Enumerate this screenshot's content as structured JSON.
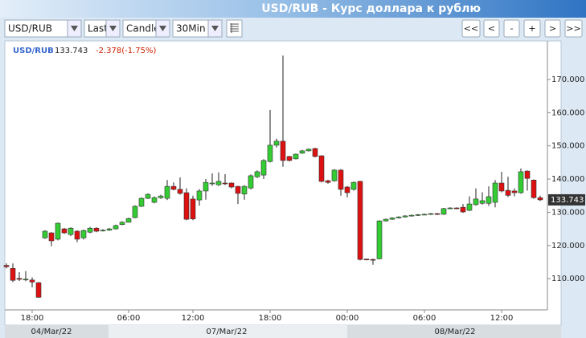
{
  "header": {
    "title": "USD/RUB - Курс доллара к рублю"
  },
  "toolbar": {
    "symbol": "USD/RUB",
    "price_type": "Last",
    "chart_type": "Candle",
    "interval": "30Min",
    "nav_buttons": [
      "<<",
      "<",
      "-",
      "+",
      ">",
      ">>"
    ]
  },
  "chart_data": {
    "type": "candlestick",
    "legend": {
      "symbol": "USD/RUB",
      "last": 133.743,
      "change": "-2.378(-1.75%)"
    },
    "up_color": "#33cc33",
    "down_color": "#dd1111",
    "date_labels": [
      "04/Mar/22",
      "07/Mar/22",
      "08/Mar/22"
    ],
    "categories": [
      null,
      null,
      null,
      null,
      "18:00",
      null,
      null,
      null,
      null,
      null,
      null,
      null,
      null,
      null,
      null,
      null,
      null,
      null,
      null,
      "06:00",
      null,
      null,
      null,
      null,
      null,
      null,
      null,
      null,
      null,
      "12:00",
      null,
      null,
      null,
      null,
      null,
      null,
      null,
      null,
      null,
      null,
      null,
      "18:00",
      null,
      null,
      null,
      null,
      null,
      null,
      null,
      null,
      null,
      null,
      null,
      "00:00",
      null,
      null,
      null,
      null,
      null,
      null,
      null,
      null,
      null,
      null,
      null,
      "06:00",
      null,
      null,
      null,
      null,
      null,
      null,
      null,
      null,
      null,
      null,
      null,
      "12:00",
      null,
      null,
      null,
      null,
      null,
      null
    ],
    "open": [
      114.0,
      113.1,
      110.1,
      109.7,
      109.6,
      108.8,
      122.3,
      123.8,
      121.9,
      125.0,
      123.3,
      124.3,
      122.3,
      124.0,
      125.2,
      124.5,
      124.6,
      125.0,
      126.3,
      127.0,
      128.4,
      131.8,
      134.2,
      133.0,
      134.4,
      134.2,
      137.8,
      136.9,
      135.9,
      134.0,
      133.7,
      136.4,
      138.7,
      138.3,
      138.8,
      138.8,
      137.8,
      135.5,
      137.3,
      140.7,
      141.2,
      145.3,
      150.2,
      151.4,
      146.8,
      146.1,
      147.8,
      148.5,
      149.2,
      147.0,
      139.5,
      139.5,
      142.7,
      137.6,
      136.9,
      139.3,
      115.9,
      115.8,
      116.0,
      127.4,
      127.9,
      128.3,
      128.6,
      128.9,
      129.1,
      129.3,
      129.4,
      129.6,
      129.4,
      131.1,
      131.3,
      131.5,
      130.6,
      132.3,
      132.7,
      132.7,
      133.0,
      138.8,
      136.6,
      136.4,
      135.9,
      142.4,
      139.7,
      134.4
    ],
    "high": [
      114.6,
      114.6,
      112.0,
      112.3,
      110.4,
      109.0,
      124.6,
      124.0,
      126.9,
      125.3,
      125.5,
      124.6,
      124.8,
      125.6,
      125.5,
      124.9,
      125.3,
      126.3,
      127.3,
      128.4,
      132.1,
      134.5,
      135.7,
      134.8,
      135.3,
      139.7,
      139.0,
      140.5,
      137.2,
      135.0,
      137.0,
      140.0,
      141.7,
      142.0,
      141.5,
      139.0,
      138.0,
      138.2,
      141.4,
      142.6,
      146.0,
      160.8,
      152.2,
      177.2,
      147.0,
      147.7,
      148.8,
      149.2,
      149.4,
      147.2,
      139.8,
      143.0,
      143.0,
      137.9,
      139.3,
      139.5,
      116.0,
      116.0,
      127.6,
      128.1,
      128.5,
      128.8,
      129.1,
      129.3,
      129.5,
      129.6,
      129.8,
      129.8,
      131.3,
      131.5,
      131.5,
      132.5,
      134.8,
      137.2,
      136.0,
      137.8,
      139.7,
      142.2,
      140.7,
      137.2,
      143.2,
      142.6,
      139.9,
      135.0
    ],
    "low": [
      113.1,
      109.0,
      109.3,
      109.2,
      107.4,
      104.2,
      122.0,
      119.8,
      121.5,
      123.5,
      122.8,
      121.0,
      121.8,
      123.7,
      124.0,
      124.2,
      124.4,
      124.8,
      126.1,
      126.9,
      128.2,
      131.6,
      134.0,
      132.7,
      134.0,
      133.7,
      136.6,
      135.3,
      127.6,
      127.6,
      132.0,
      133.8,
      138.0,
      137.9,
      138.2,
      137.2,
      132.5,
      133.8,
      136.9,
      140.3,
      140.0,
      145.0,
      149.5,
      143.7,
      145.3,
      145.9,
      147.6,
      148.3,
      146.5,
      139.0,
      138.6,
      139.2,
      135.0,
      134.5,
      136.5,
      115.5,
      115.5,
      114.2,
      115.8,
      127.2,
      127.7,
      128.1,
      128.4,
      128.7,
      128.9,
      129.1,
      129.2,
      129.2,
      129.2,
      130.9,
      130.9,
      129.8,
      130.3,
      132.0,
      132.3,
      131.9,
      131.5,
      136.0,
      134.6,
      134.8,
      135.6,
      136.5,
      134.1,
      133.4
    ],
    "close": [
      113.6,
      109.5,
      109.8,
      109.9,
      109.0,
      104.4,
      124.3,
      121.4,
      126.7,
      123.8,
      125.2,
      121.9,
      124.5,
      125.2,
      124.3,
      124.6,
      125.0,
      126.0,
      127.0,
      128.1,
      131.8,
      134.2,
      135.4,
      134.4,
      134.9,
      137.8,
      136.9,
      135.7,
      127.9,
      128.0,
      136.4,
      139.0,
      138.8,
      139.3,
      138.6,
      137.6,
      135.7,
      137.8,
      141.0,
      142.2,
      145.6,
      150.2,
      151.4,
      145.6,
      145.6,
      147.5,
      148.5,
      149.0,
      146.8,
      139.3,
      139.0,
      142.7,
      136.9,
      135.9,
      139.0,
      115.8,
      115.7,
      115.6,
      127.4,
      127.9,
      128.3,
      128.6,
      128.9,
      129.1,
      129.3,
      129.4,
      129.6,
      129.4,
      131.1,
      131.3,
      131.1,
      130.1,
      132.5,
      134.0,
      133.5,
      134.7,
      138.8,
      136.4,
      135.1,
      135.9,
      142.2,
      140.2,
      134.4,
      133.743
    ],
    "ylim": [
      100.6,
      181.6
    ],
    "yticks": [
      {
        "value": 110,
        "label": "110.000"
      },
      {
        "value": 120,
        "label": "120.000"
      },
      {
        "value": 130,
        "label": "130.000"
      },
      {
        "value": 140,
        "label": "140.000"
      },
      {
        "value": 150,
        "label": "150.000"
      },
      {
        "value": 160,
        "label": "160.000"
      },
      {
        "value": 170,
        "label": "170.000"
      }
    ],
    "grid": false
  }
}
